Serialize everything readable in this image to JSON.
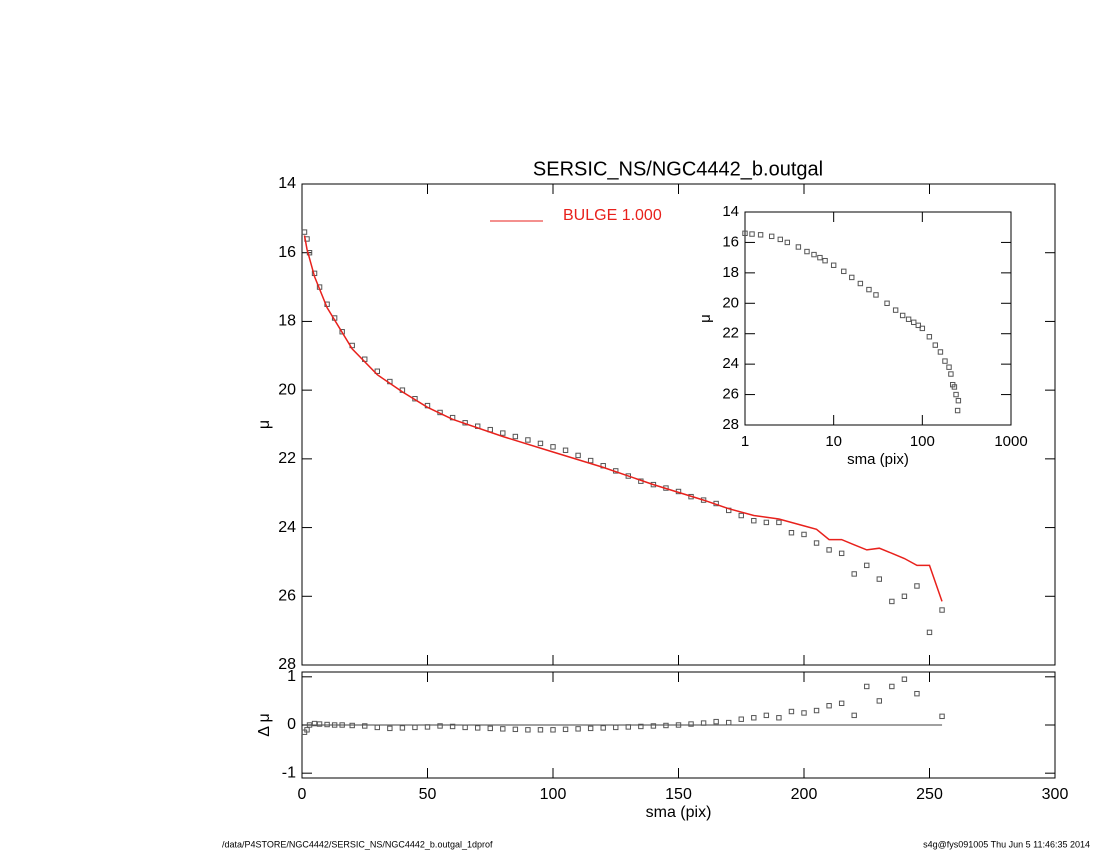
{
  "chart_data": [
    {
      "type": "scatter",
      "title": "SERSIC_NS/NGC4442_b.outgal",
      "ylabel": "μ",
      "xlim": [
        0,
        300
      ],
      "xticks": [
        0,
        50,
        100,
        150,
        200,
        250,
        300
      ],
      "show_xtick_labels": false,
      "ylim": [
        14,
        28
      ],
      "yticks": [
        14,
        16,
        18,
        20,
        22,
        24,
        26,
        28
      ],
      "y_reversed": true,
      "series": [
        {
          "marker": "square",
          "color": "#555555",
          "x": [
            1,
            2,
            3,
            5,
            7,
            10,
            13,
            16,
            20,
            25,
            30,
            35,
            40,
            45,
            50,
            55,
            60,
            65,
            70,
            75,
            80,
            85,
            90,
            95,
            100,
            105,
            110,
            115,
            120,
            125,
            130,
            135,
            140,
            145,
            150,
            155,
            160,
            165,
            170,
            175,
            180,
            185,
            190,
            195,
            200,
            205,
            210,
            215,
            220,
            225,
            230,
            235,
            240,
            245,
            250,
            255
          ],
          "values": [
            15.4,
            15.6,
            16.0,
            16.6,
            17.0,
            17.5,
            17.9,
            18.3,
            18.7,
            19.1,
            19.45,
            19.75,
            20.0,
            20.25,
            20.45,
            20.65,
            20.8,
            20.95,
            21.05,
            21.15,
            21.25,
            21.35,
            21.45,
            21.55,
            21.65,
            21.75,
            21.9,
            22.05,
            22.2,
            22.35,
            22.5,
            22.65,
            22.75,
            22.85,
            22.95,
            23.1,
            23.2,
            23.3,
            23.5,
            23.65,
            23.8,
            23.85,
            23.85,
            24.15,
            24.2,
            24.45,
            24.65,
            24.75,
            25.35,
            25.1,
            25.5,
            26.15,
            26.0,
            25.7,
            27.05,
            26.4
          ]
        },
        {
          "name": "BULGE  1.000",
          "marker": "line",
          "color": "#e8211c",
          "x": [
            1,
            2,
            5,
            10,
            20,
            30,
            40,
            50,
            60,
            80,
            100,
            120,
            140,
            160,
            170,
            180,
            190,
            200,
            205,
            210,
            215,
            220,
            225,
            230,
            235,
            240,
            245,
            250,
            255
          ],
          "values": [
            15.5,
            15.9,
            16.7,
            17.6,
            18.8,
            19.55,
            20.05,
            20.5,
            20.85,
            21.35,
            21.8,
            22.25,
            22.75,
            23.2,
            23.45,
            23.65,
            23.75,
            23.95,
            24.05,
            24.35,
            24.35,
            24.5,
            24.65,
            24.6,
            24.75,
            24.9,
            25.1,
            25.1,
            26.15
          ]
        }
      ]
    },
    {
      "type": "scatter",
      "xlabel": "sma (pix)",
      "ylabel": "Δ μ",
      "xlim": [
        0,
        300
      ],
      "xticks": [
        0,
        50,
        100,
        150,
        200,
        250,
        300
      ],
      "show_xtick_labels": true,
      "ylim": [
        -1.1,
        1.1
      ],
      "yticks": [
        -1,
        0,
        1
      ],
      "y_reversed": false,
      "hline": 0,
      "series": [
        {
          "marker": "square",
          "color": "#555555",
          "x": [
            1,
            2,
            3,
            5,
            7,
            10,
            13,
            16,
            20,
            25,
            30,
            35,
            40,
            45,
            50,
            55,
            60,
            65,
            70,
            75,
            80,
            85,
            90,
            95,
            100,
            105,
            110,
            115,
            120,
            125,
            130,
            135,
            140,
            145,
            150,
            155,
            160,
            165,
            170,
            175,
            180,
            185,
            190,
            195,
            200,
            205,
            210,
            215,
            220,
            225,
            230,
            235,
            240,
            245,
            255
          ],
          "values": [
            -0.15,
            -0.1,
            0,
            0.03,
            0.02,
            0.01,
            0,
            0,
            -0.01,
            -0.02,
            -0.05,
            -0.07,
            -0.06,
            -0.05,
            -0.04,
            -0.02,
            -0.03,
            -0.05,
            -0.06,
            -0.07,
            -0.08,
            -0.09,
            -0.1,
            -0.1,
            -0.1,
            -0.09,
            -0.08,
            -0.07,
            -0.06,
            -0.05,
            -0.04,
            -0.03,
            -0.02,
            -0.01,
            0,
            0.02,
            0.04,
            0.07,
            0.05,
            0.12,
            0.15,
            0.2,
            0.15,
            0.28,
            0.25,
            0.3,
            0.4,
            0.45,
            0.2,
            0.8,
            0.5,
            0.8,
            0.95,
            0.65,
            0.18
          ]
        }
      ]
    },
    {
      "type": "scatter",
      "xlabel": "sma (pix)",
      "ylabel": "μ",
      "xscale": "log",
      "xlim": [
        1,
        1000
      ],
      "xticks": [
        1,
        10,
        100,
        1000
      ],
      "show_xtick_labels": true,
      "ylim": [
        14,
        28
      ],
      "yticks": [
        14,
        16,
        18,
        20,
        22,
        24,
        26,
        28
      ],
      "y_reversed": true,
      "series": [
        {
          "marker": "square",
          "color": "#555555",
          "x": [
            1,
            1.2,
            1.5,
            2,
            2.5,
            3,
            4,
            5,
            6,
            7,
            8,
            10,
            13,
            16,
            20,
            25,
            30,
            40,
            50,
            60,
            70,
            80,
            90,
            100,
            120,
            140,
            160,
            180,
            200,
            210,
            220,
            230,
            240,
            250,
            255
          ],
          "values": [
            15.4,
            15.45,
            15.5,
            15.6,
            15.8,
            16.0,
            16.3,
            16.6,
            16.8,
            17.0,
            17.2,
            17.5,
            17.9,
            18.3,
            18.7,
            19.1,
            19.45,
            20.0,
            20.45,
            20.8,
            21.05,
            21.25,
            21.45,
            21.65,
            22.2,
            22.75,
            23.2,
            23.8,
            24.2,
            24.65,
            25.35,
            25.5,
            26.0,
            27.05,
            26.4
          ]
        }
      ]
    }
  ],
  "footer": {
    "left": "/data/P4STORE/NGC4442/SERSIC_NS/NGC4442_b.outgal_1dprof",
    "right": "s4g@fys091005  Thu Jun  5 11:46:35 2014"
  }
}
